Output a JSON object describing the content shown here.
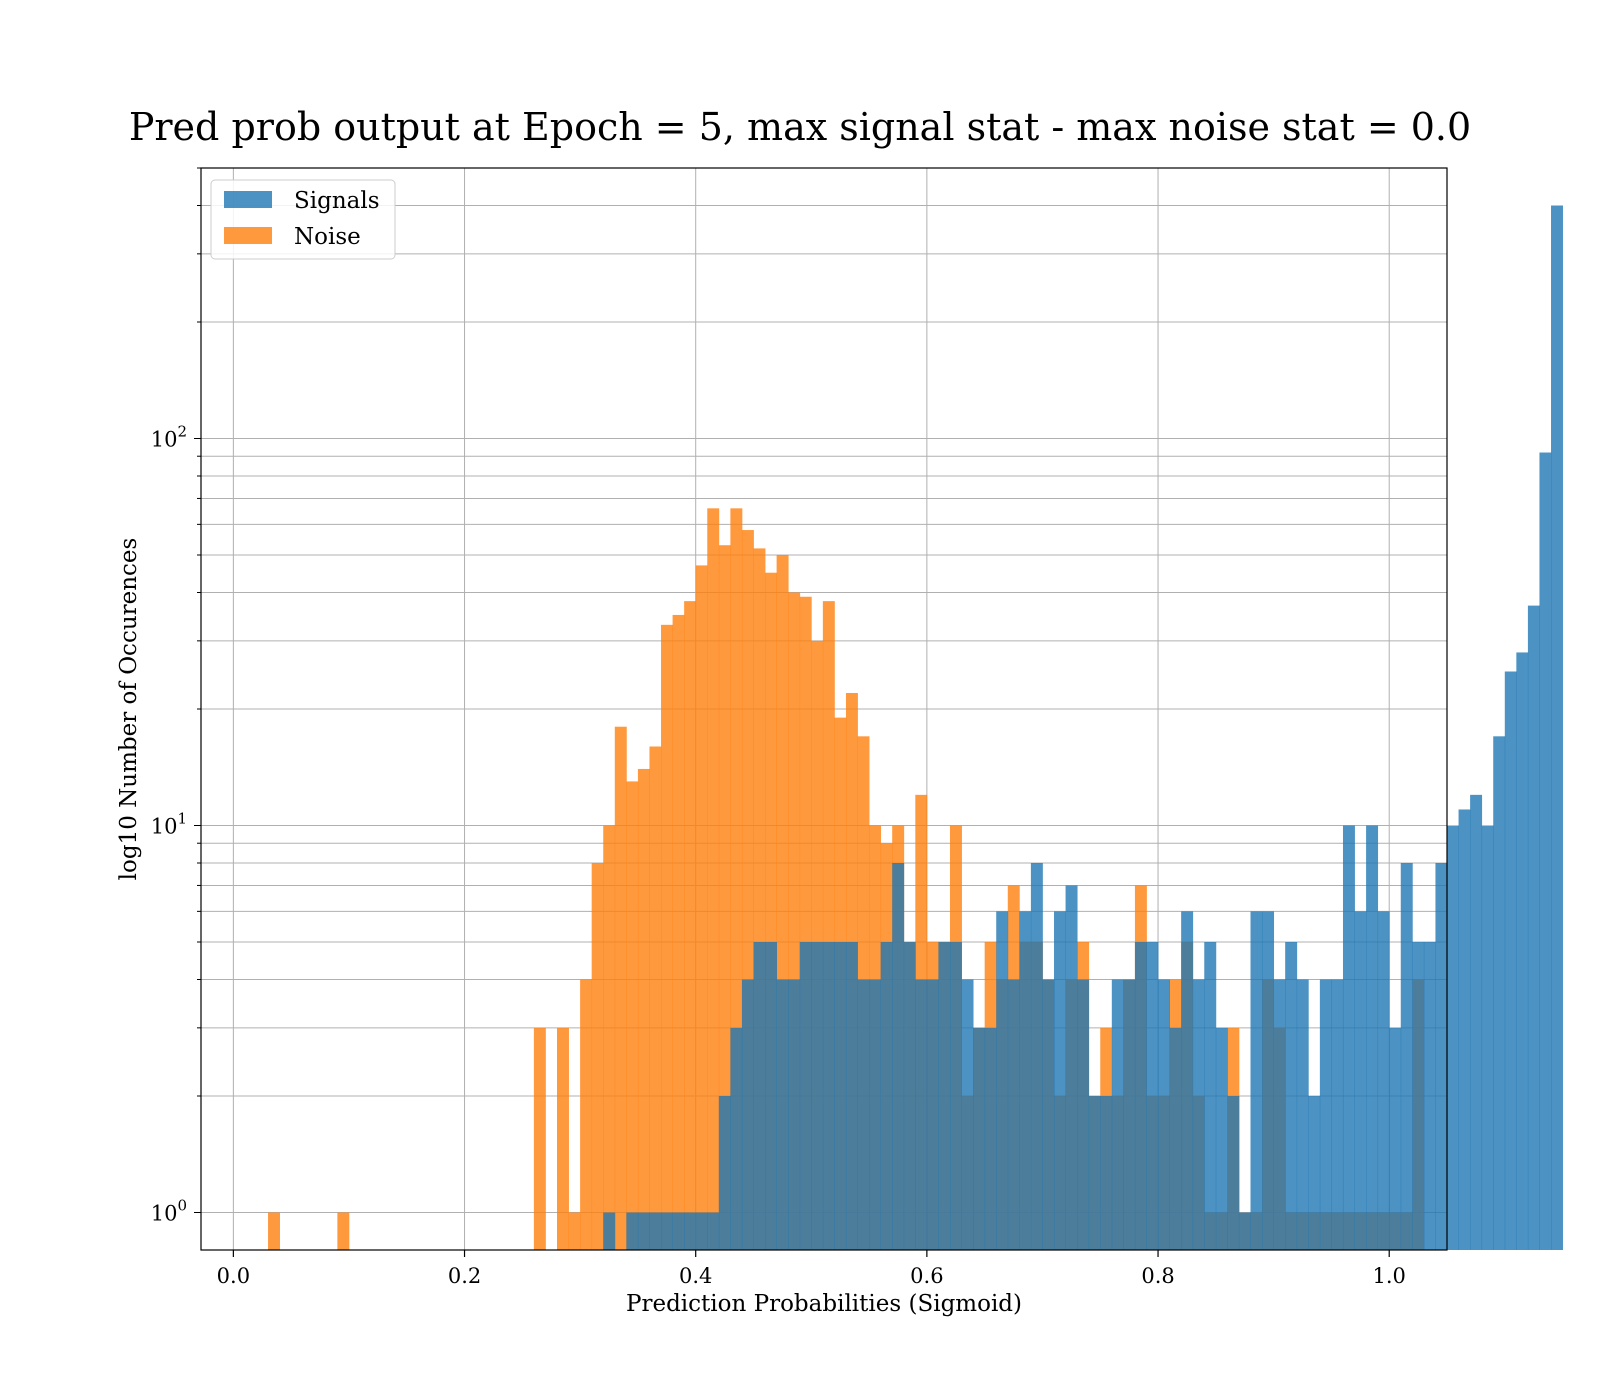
{
  "chart_data": {
    "type": "bar",
    "subtype": "histogram",
    "title": "Pred prob output at Epoch = 5, max signal stat - max noise stat = 0.0",
    "xlabel": "Prediction Probabilities (Sigmoid)",
    "ylabel": "log10 Number of Occurences",
    "xlim": [
      -0.028,
      1.05
    ],
    "ylim": [
      0.8,
      500
    ],
    "yscale": "log",
    "grid": true,
    "legend_position": "top-left",
    "x_ticks": [
      "0.0",
      "0.2",
      "0.4",
      "0.6",
      "0.8",
      "1.0"
    ],
    "y_ticks": [
      {
        "base": "10",
        "exp": "0"
      },
      {
        "base": "10",
        "exp": "1"
      },
      {
        "base": "10",
        "exp": "2"
      }
    ],
    "bin_start": 0.02,
    "bin_width": 0.01,
    "series": [
      {
        "name": "Signals",
        "color": "#1f77b4",
        "counts": [
          0,
          0,
          0,
          0,
          0,
          0,
          0,
          0,
          0,
          0,
          0,
          0,
          0,
          0,
          0,
          0,
          0,
          0,
          0,
          0,
          0,
          0,
          0,
          0,
          0,
          0,
          0,
          0,
          0,
          0,
          1,
          0,
          1,
          1,
          1,
          1,
          1,
          1,
          1,
          1,
          2,
          3,
          4,
          5,
          5,
          4,
          4,
          5,
          5,
          5,
          5,
          5,
          4,
          4,
          5,
          8,
          5,
          4,
          4,
          5,
          5,
          4,
          3,
          3,
          6,
          4,
          6,
          8,
          4,
          6,
          7,
          4,
          2,
          2,
          4,
          4,
          5,
          5,
          4,
          3,
          6,
          4,
          5,
          3,
          2,
          1,
          6,
          6,
          4,
          5,
          4,
          2,
          4,
          4,
          10,
          6,
          10,
          6,
          3,
          8,
          5,
          5,
          8,
          10,
          11,
          12,
          10,
          17,
          25,
          28,
          37,
          92,
          400
        ]
      },
      {
        "name": "Noise",
        "color": "#ff7f0e",
        "counts": [
          0,
          1,
          0,
          0,
          0,
          0,
          0,
          1,
          0,
          0,
          0,
          0,
          0,
          0,
          0,
          0,
          0,
          0,
          0,
          0,
          0,
          0,
          0,
          0,
          3,
          0,
          3,
          1,
          4,
          8,
          10,
          18,
          13,
          14,
          16,
          33,
          35,
          38,
          47,
          66,
          53,
          66,
          58,
          52,
          45,
          50,
          40,
          39,
          30,
          38,
          19,
          22,
          17,
          10,
          9,
          10,
          5,
          12,
          5,
          5,
          10,
          2,
          3,
          5,
          4,
          7,
          5,
          5,
          4,
          2,
          4,
          5,
          2,
          3,
          2,
          4,
          7,
          2,
          2,
          4,
          5,
          2,
          1,
          1,
          3,
          1,
          1,
          4,
          3,
          1,
          1,
          1,
          1,
          1,
          1,
          1,
          1,
          1,
          1,
          1,
          4
        ]
      }
    ]
  }
}
